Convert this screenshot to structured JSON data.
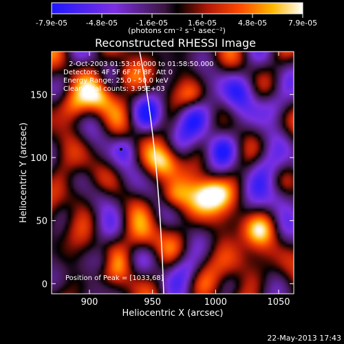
{
  "chart_data": {
    "type": "heatmap",
    "title": "Reconstructed RHESSI Image",
    "xlabel": "Heliocentric X (arcsec)",
    "ylabel": "Heliocentric Y (arcsec)",
    "xlim": [
      870,
      1062
    ],
    "ylim": [
      -8,
      184
    ],
    "x_ticks": [
      900,
      950,
      1000,
      1050
    ],
    "y_ticks": [
      0,
      50,
      100,
      150
    ],
    "colorbar": {
      "min": -7.9e-05,
      "max": 7.9e-05,
      "tick_labels": [
        "-7.9e-05",
        "-4.8e-05",
        "-1.6e-05",
        "1.6e-05",
        "4.8e-05",
        "7.9e-05"
      ],
      "label": "(photons cm⁻² s⁻¹ asec⁻²)"
    },
    "annotations": [
      "2-Oct-2003 01:53:16.000 to 01:58:50.000",
      "Detectors: 4F 5F 6F 7F 8F, Att 0",
      "Energy Range: 25.0 - 50.0 keV",
      "Clean     Total counts: 3.95E+03"
    ],
    "peak_label": "Position of Peak = [1033,68]",
    "grid": false
  },
  "footer": {
    "timestamp": "22-May-2013 17:43"
  }
}
